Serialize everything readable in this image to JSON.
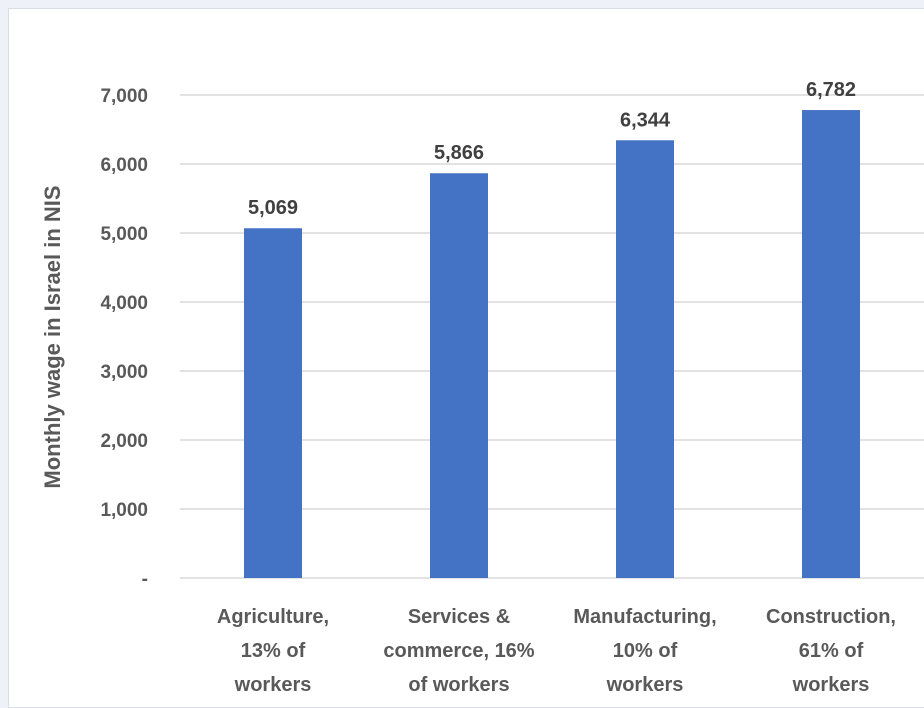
{
  "chart_data": {
    "type": "bar",
    "categories": [
      [
        "Agriculture,",
        "13% of",
        "workers"
      ],
      [
        "Services &",
        "commerce, 16%",
        "of workers"
      ],
      [
        "Manufacturing,",
        "10% of",
        "workers"
      ],
      [
        "Construction,",
        "61% of",
        "workers"
      ]
    ],
    "values": [
      5069,
      5866,
      6344,
      6782
    ],
    "value_labels": [
      "5,069",
      "5,866",
      "6,344",
      "6,782"
    ],
    "ylabel": "Monthly wage in Israel in NIS",
    "xlabel": "",
    "ylim": [
      0,
      7000
    ],
    "yticks": [
      {
        "value": 0,
        "label": "-"
      },
      {
        "value": 1000,
        "label": "1,000"
      },
      {
        "value": 2000,
        "label": "2,000"
      },
      {
        "value": 3000,
        "label": "3,000"
      },
      {
        "value": 4000,
        "label": "4,000"
      },
      {
        "value": 5000,
        "label": "5,000"
      },
      {
        "value": 6000,
        "label": "6,000"
      },
      {
        "value": 7000,
        "label": "7,000"
      }
    ],
    "grid": true,
    "bar_color": "#4472c4",
    "grid_color": "#d9d9d9"
  }
}
